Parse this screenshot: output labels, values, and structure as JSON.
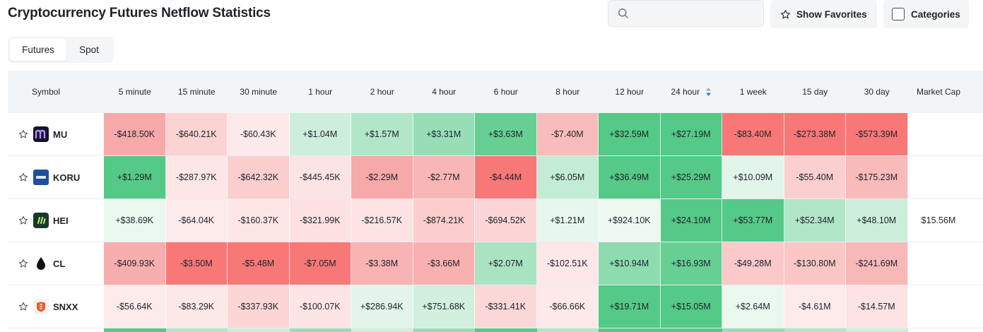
{
  "page": {
    "title": "Cryptocurrency Futures Netflow Statistics"
  },
  "search": {
    "placeholder": "",
    "value": ""
  },
  "toolbar": {
    "favorites_label": "Show Favorites",
    "categories_label": "Categories"
  },
  "tabs": [
    {
      "label": "Futures",
      "active": true
    },
    {
      "label": "Spot",
      "active": false
    }
  ],
  "table": {
    "headers": {
      "symbol": "Symbol",
      "periods": [
        "5 minute",
        "15 minute",
        "30 minute",
        "1 hour",
        "2 hour",
        "4 hour",
        "6 hour",
        "8 hour",
        "12 hour",
        "24 hour",
        "1 week",
        "15 day",
        "30 day"
      ],
      "market_cap": "Market Cap",
      "sorted_column": "24 hour"
    },
    "rows": [
      {
        "symbol": "MU",
        "logo_icon": "mu-logo-icon",
        "values": [
          "-$418.50K",
          "-$640.21K",
          "-$60.43K",
          "+$1.04M",
          "+$1.57M",
          "+$3.31M",
          "+$3.63M",
          "-$7.40M",
          "+$32.59M",
          "+$27.19M",
          "-$83.40M",
          "-$273.38M",
          "-$573.39M"
        ],
        "colors": [
          "#f7a8a8",
          "#fbd3d3",
          "#fde9e9",
          "#cdeedb",
          "#b2e6c8",
          "#97deb6",
          "#67cf94",
          "#f9bcbc",
          "#55c987",
          "#55c987",
          "#f87878",
          "#f87878",
          "#f87878"
        ],
        "market_cap": ""
      },
      {
        "symbol": "KORU",
        "logo_icon": "koru-logo-icon",
        "values": [
          "+$1.29M",
          "-$287.97K",
          "-$642.32K",
          "-$445.45K",
          "-$2.29M",
          "-$2.77M",
          "-$4.44M",
          "+$6.05M",
          "+$36.49M",
          "+$25.29M",
          "+$10.09M",
          "-$55.40M",
          "-$175.23M"
        ],
        "colors": [
          "#55c987",
          "#fde6e6",
          "#fbcece",
          "#fde4e4",
          "#f7a8a8",
          "#f9b6b6",
          "#f87878",
          "#c4ebd4",
          "#55c987",
          "#55c987",
          "#e2f5ea",
          "#fbcfcf",
          "#f9baba"
        ],
        "market_cap": ""
      },
      {
        "symbol": "HEI",
        "logo_icon": "hei-logo-icon",
        "values": [
          "+$38.69K",
          "-$64.04K",
          "-$160.37K",
          "-$321.99K",
          "-$216.57K",
          "-$874.21K",
          "-$694.52K",
          "+$1.21M",
          "+$924.10K",
          "+$24.10M",
          "+$53.77M",
          "+$52.34M",
          "+$48.10M"
        ],
        "colors": [
          "#eaf8ef",
          "#fdeaea",
          "#fde6e6",
          "#fde1e1",
          "#fde3e3",
          "#fbcdcd",
          "#fcd6d6",
          "#e8f7ee",
          "#eef9f2",
          "#55c987",
          "#55c987",
          "#b2e6c8",
          "#cdeedb"
        ],
        "market_cap": "$15.56M"
      },
      {
        "symbol": "CL",
        "logo_icon": "cl-logo-icon",
        "values": [
          "-$409.93K",
          "-$3.50M",
          "-$5.48M",
          "-$7.05M",
          "-$3.38M",
          "-$3.66M",
          "+$2.07M",
          "-$102.51K",
          "+$10.94M",
          "+$16.93M",
          "-$49.28M",
          "-$130.80M",
          "-$241.69M"
        ],
        "colors": [
          "#f8aeae",
          "#f87878",
          "#f87878",
          "#f87878",
          "#f9b3b3",
          "#f9b0b0",
          "#a9e3c2",
          "#fde7e7",
          "#8ddbaf",
          "#67cf94",
          "#fbc9c9",
          "#fbc6c6",
          "#f9b8b8"
        ],
        "market_cap": ""
      },
      {
        "symbol": "SNXX",
        "logo_icon": "snxx-logo-icon",
        "values": [
          "-$56.64K",
          "-$83.29K",
          "-$337.93K",
          "-$100.07K",
          "+$286.94K",
          "+$751.68K",
          "-$331.41K",
          "-$66.66K",
          "+$19.71M",
          "+$15.05M",
          "+$2.64M",
          "-$4.61M",
          "-$14.57M"
        ],
        "colors": [
          "#fdeaea",
          "#fde8e8",
          "#fcd6d6",
          "#fde5e5",
          "#e3f5ea",
          "#d2f0de",
          "#fcd7d7",
          "#fde9e9",
          "#55c987",
          "#55c987",
          "#eaf8ef",
          "#fdeaea",
          "#fde3e3"
        ],
        "market_cap": ""
      }
    ]
  },
  "colors": {
    "positive_strong": "#55c987",
    "negative_strong": "#f87878",
    "accent": "#2f7de1"
  }
}
